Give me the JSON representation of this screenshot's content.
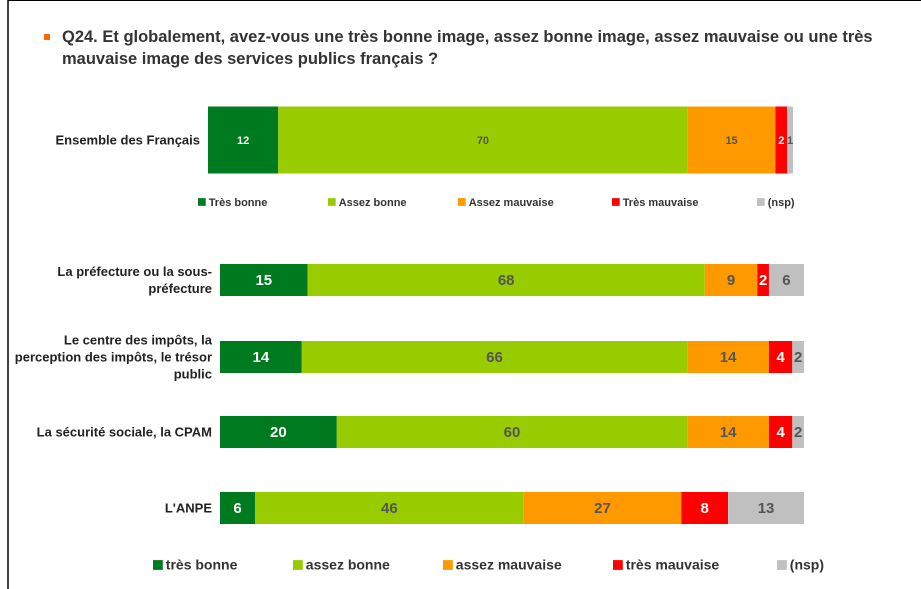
{
  "title": "Q24. Et globalement, avez-vous une très bonne image, assez bonne image, assez mauvaise ou une très mauvaise image des services publics français ?",
  "chart_data": [
    {
      "type": "stacked_barh",
      "categories": [
        "Ensemble des Français"
      ],
      "xlim": [
        0,
        100
      ],
      "series": [
        {
          "name": "Très bonne",
          "color": "#007a1e",
          "values": [
            12
          ]
        },
        {
          "name": "Assez bonne",
          "color": "#99cc00",
          "values": [
            70
          ]
        },
        {
          "name": "Assez mauvaise",
          "color": "#ff9900",
          "values": [
            15
          ]
        },
        {
          "name": "Très mauvaise",
          "color": "#ff0000",
          "values": [
            2
          ]
        },
        {
          "name": "(nsp)",
          "color": "#c0c0c0",
          "values": [
            1
          ]
        }
      ]
    },
    {
      "type": "stacked_barh",
      "categories": [
        "La préfecture ou la sous-préfecture",
        "Le centre des impôts, la perception des impôts, le trésor public",
        "La sécurité sociale, la CPAM",
        "L'ANPE"
      ],
      "xlim": [
        0,
        100
      ],
      "series": [
        {
          "name": "très bonne",
          "color": "#007a1e",
          "values": [
            15,
            14,
            20,
            6
          ]
        },
        {
          "name": "assez bonne",
          "color": "#99cc00",
          "values": [
            68,
            66,
            60,
            46
          ]
        },
        {
          "name": "assez mauvaise",
          "color": "#ff9900",
          "values": [
            9,
            14,
            14,
            27
          ]
        },
        {
          "name": "très mauvaise",
          "color": "#ff0000",
          "values": [
            2,
            4,
            4,
            8
          ]
        },
        {
          "name": "(nsp)",
          "color": "#c0c0c0",
          "values": [
            6,
            2,
            2,
            13
          ]
        }
      ]
    }
  ]
}
